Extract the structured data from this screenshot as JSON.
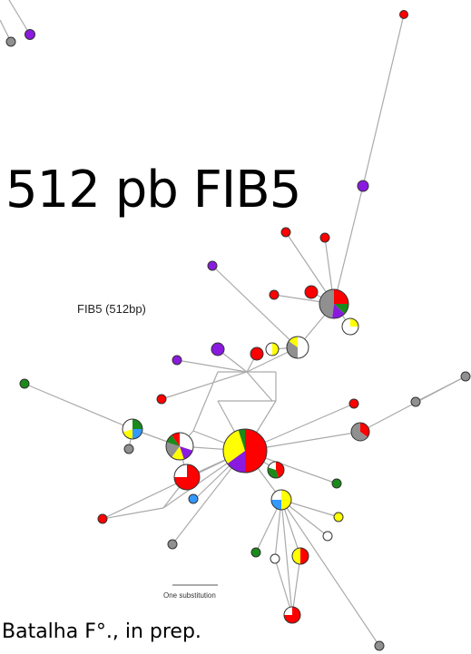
{
  "slide": {
    "title": "512 pb FIB5",
    "figure_label": "FIB5 (512bp)",
    "scale_label": "One substitution",
    "credit": "Batalha F°., in prep."
  },
  "colors": {
    "red": "#ff0000",
    "yellow": "#ffff00",
    "green": "#1a8a1a",
    "purple": "#8a1ae0",
    "blue": "#3399ff",
    "gray": "#909090",
    "white": "#ffffff",
    "edge": "#aaaaaa",
    "outline": "#333333"
  }
}
